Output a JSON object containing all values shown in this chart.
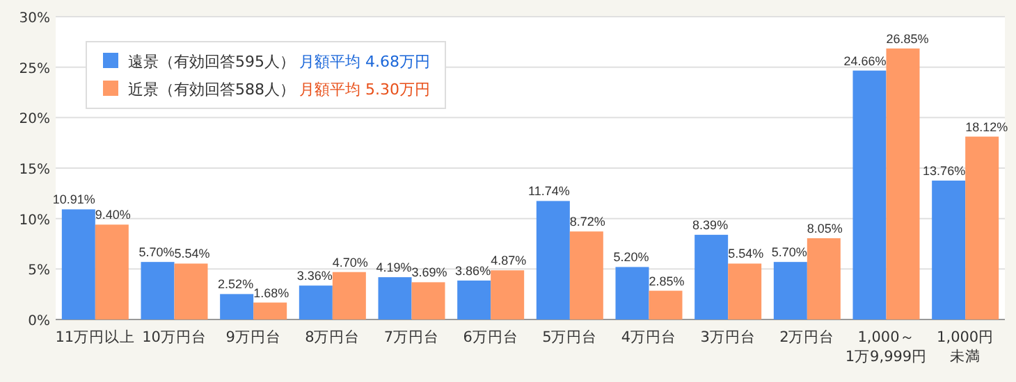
{
  "chart_data": {
    "type": "bar",
    "categories": [
      "11万円以上",
      "10万円台",
      "9万円台",
      "8万円台",
      "7万円台",
      "6万円台",
      "5万円台",
      "4万円台",
      "3万円台",
      "2万円台",
      "1,000～1万9,999円",
      "1,000円未満"
    ],
    "series": [
      {
        "name": "遠景（有効回答595人）",
        "color": "#4a90f0",
        "values": [
          10.91,
          5.7,
          2.52,
          3.36,
          4.19,
          3.86,
          11.74,
          5.2,
          8.39,
          5.7,
          24.66,
          13.76
        ],
        "value_labels": [
          "10.91%",
          "5.70%",
          "2.52%",
          "3.36%",
          "4.19%",
          "3.86%",
          "11.74%",
          "5.20%",
          "8.39%",
          "5.70%",
          "24.66%",
          "13.76%"
        ]
      },
      {
        "name": "近景（有効回答588人）",
        "color": "#ff9a66",
        "values": [
          9.4,
          5.54,
          1.68,
          4.7,
          3.69,
          4.87,
          8.72,
          2.85,
          5.54,
          8.05,
          26.85,
          18.12
        ],
        "value_labels": [
          "9.40%",
          "5.54%",
          "1.68%",
          "4.70%",
          "3.69%",
          "4.87%",
          "8.72%",
          "2.85%",
          "5.54%",
          "8.05%",
          "26.85%",
          "18.12%"
        ]
      }
    ],
    "annotations": [
      "月額平均 4.68万円",
      "月額平均 5.30万円"
    ],
    "ylim": [
      0,
      30
    ],
    "yticks": [
      {
        "value": 0,
        "label": "0%"
      },
      {
        "value": 5,
        "label": "5%"
      },
      {
        "value": 10,
        "label": "10%"
      },
      {
        "value": 15,
        "label": "15%"
      },
      {
        "value": 20,
        "label": "20%"
      },
      {
        "value": 25,
        "label": "25%"
      },
      {
        "value": 30,
        "label": "30%"
      }
    ],
    "grid": "y",
    "legend": "top left"
  }
}
